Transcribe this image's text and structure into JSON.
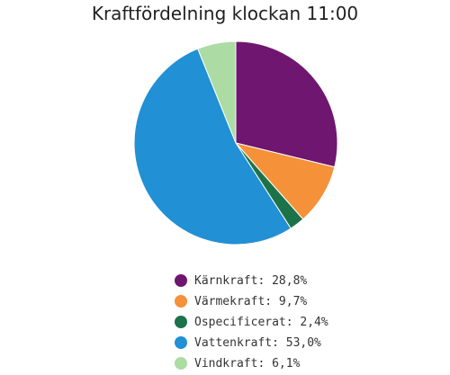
{
  "chart_data": {
    "type": "pie",
    "title": "Kraftfördelning klockan 11:00",
    "slices": [
      {
        "name": "Kärnkraft",
        "value": 28.8,
        "label": "Kärnkraft: 28,8%",
        "color": "#6e1670"
      },
      {
        "name": "Värmekraft",
        "value": 9.7,
        "label": "Värmekraft: 9,7%",
        "color": "#f59138"
      },
      {
        "name": "Ospecificerat",
        "value": 2.4,
        "label": "Ospecificerat: 2,4%",
        "color": "#1d7349"
      },
      {
        "name": "Vattenkraft",
        "value": 53.0,
        "label": "Vattenkraft: 53,0%",
        "color": "#2190d4"
      },
      {
        "name": "Vindkraft",
        "value": 6.1,
        "label": "Vindkraft: 6,1%",
        "color": "#acdba4"
      }
    ],
    "legend": "bottom"
  }
}
